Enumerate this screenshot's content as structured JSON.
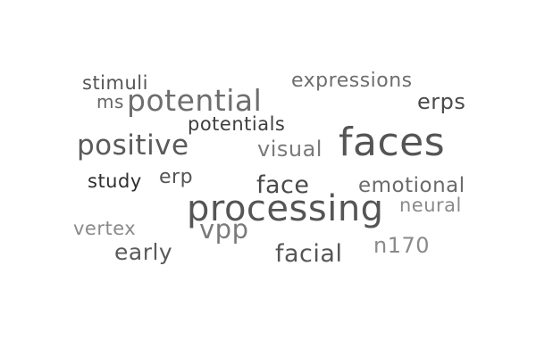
{
  "words": [
    {
      "text": "faces",
      "color": "#555555"
    },
    {
      "text": "processing",
      "color": "#555555"
    },
    {
      "text": "potential",
      "color": "#6e6e6e"
    },
    {
      "text": "positive",
      "color": "#5a5a5a"
    },
    {
      "text": "face",
      "color": "#4a4a4a"
    },
    {
      "text": "facial",
      "color": "#555555"
    },
    {
      "text": "visual",
      "color": "#7a7a7a"
    },
    {
      "text": "emotional",
      "color": "#6a6a6a"
    },
    {
      "text": "vpp",
      "color": "#7a7a7a"
    },
    {
      "text": "n170",
      "color": "#8a8a8a"
    },
    {
      "text": "early",
      "color": "#5a5a5a"
    },
    {
      "text": "erps",
      "color": "#4a4a4a"
    },
    {
      "text": "expressions",
      "color": "#6e6e6e"
    },
    {
      "text": "stimuli",
      "color": "#555555"
    },
    {
      "text": "potentials",
      "color": "#3e3e3e"
    },
    {
      "text": "vertex",
      "color": "#8a8a8a"
    },
    {
      "text": "neural",
      "color": "#8a8a8a"
    },
    {
      "text": "erp",
      "color": "#555555"
    },
    {
      "text": "study",
      "color": "#2e2e2e"
    },
    {
      "text": "ms",
      "color": "#666666"
    }
  ]
}
